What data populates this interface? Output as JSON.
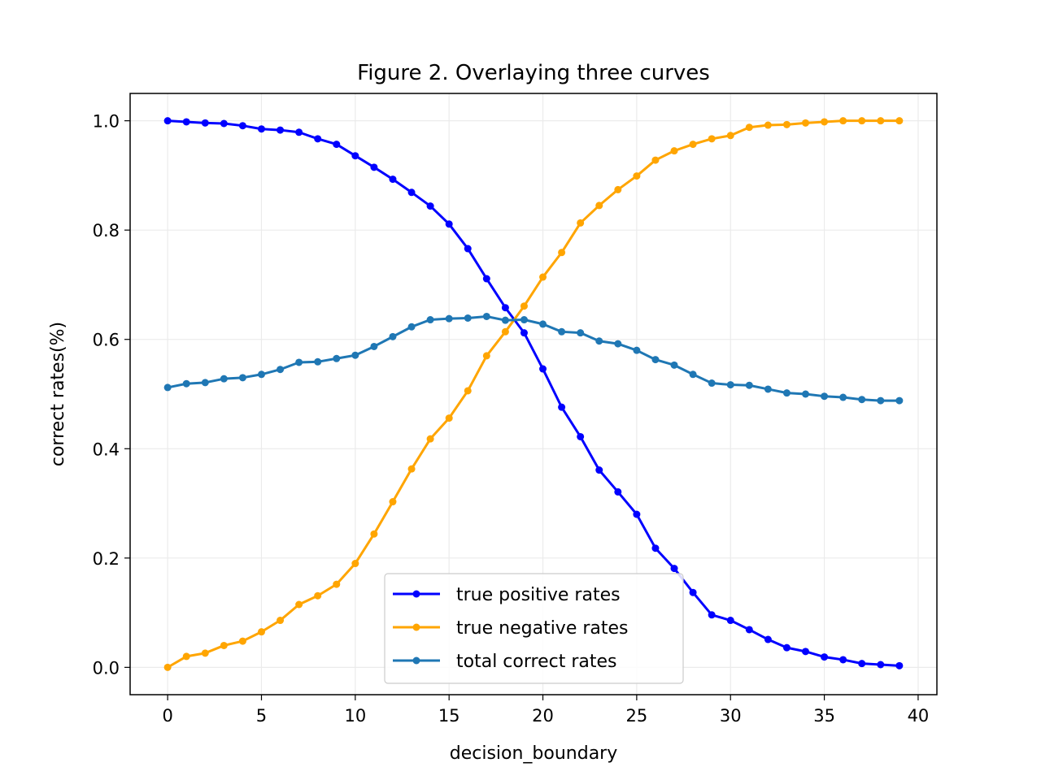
{
  "chart_data": {
    "type": "line",
    "title": "Figure 2. Overlaying three curves",
    "xlabel": "decision_boundary",
    "ylabel": "correct rates(%)",
    "xlim": [
      -2,
      41
    ],
    "ylim": [
      -0.05,
      1.05
    ],
    "xticks": [
      0,
      5,
      10,
      15,
      20,
      25,
      30,
      35,
      40
    ],
    "yticks": [
      0.0,
      0.2,
      0.4,
      0.6,
      0.8,
      1.0
    ],
    "xtick_labels": [
      "0",
      "5",
      "10",
      "15",
      "20",
      "25",
      "30",
      "35",
      "40"
    ],
    "ytick_labels": [
      "0.0",
      "0.2",
      "0.4",
      "0.6",
      "0.8",
      "1.0"
    ],
    "grid": true,
    "legend_position": "lower-center",
    "x": [
      0,
      1,
      2,
      3,
      4,
      5,
      6,
      7,
      8,
      9,
      10,
      11,
      12,
      13,
      14,
      15,
      16,
      17,
      18,
      19,
      20,
      21,
      22,
      23,
      24,
      25,
      26,
      27,
      28,
      29,
      30,
      31,
      32,
      33,
      34,
      35,
      36,
      37,
      38,
      39
    ],
    "series": [
      {
        "name": "true positive rates",
        "color": "#0000ff",
        "values": [
          1.0,
          0.998,
          0.996,
          0.995,
          0.991,
          0.985,
          0.983,
          0.979,
          0.967,
          0.957,
          0.936,
          0.915,
          0.893,
          0.869,
          0.844,
          0.811,
          0.766,
          0.711,
          0.658,
          0.612,
          0.546,
          0.476,
          0.422,
          0.361,
          0.321,
          0.28,
          0.218,
          0.181,
          0.137,
          0.096,
          0.086,
          0.069,
          0.051,
          0.036,
          0.029,
          0.019,
          0.014,
          0.007,
          0.005,
          0.003
        ]
      },
      {
        "name": "true negative rates",
        "color": "#ffa500",
        "values": [
          0.0,
          0.02,
          0.026,
          0.04,
          0.048,
          0.065,
          0.086,
          0.115,
          0.131,
          0.152,
          0.19,
          0.244,
          0.303,
          0.363,
          0.418,
          0.456,
          0.506,
          0.57,
          0.614,
          0.661,
          0.714,
          0.759,
          0.813,
          0.845,
          0.874,
          0.899,
          0.928,
          0.945,
          0.957,
          0.967,
          0.973,
          0.988,
          0.992,
          0.993,
          0.996,
          0.998,
          1.0,
          1.0,
          1.0,
          1.0
        ]
      },
      {
        "name": "total correct rates",
        "color": "#1f77b4",
        "values": [
          0.512,
          0.519,
          0.521,
          0.528,
          0.53,
          0.536,
          0.545,
          0.558,
          0.559,
          0.565,
          0.571,
          0.587,
          0.605,
          0.623,
          0.636,
          0.638,
          0.639,
          0.642,
          0.635,
          0.636,
          0.628,
          0.614,
          0.612,
          0.597,
          0.592,
          0.58,
          0.563,
          0.553,
          0.536,
          0.52,
          0.517,
          0.516,
          0.509,
          0.502,
          0.5,
          0.496,
          0.494,
          0.49,
          0.488,
          0.488
        ]
      }
    ]
  }
}
